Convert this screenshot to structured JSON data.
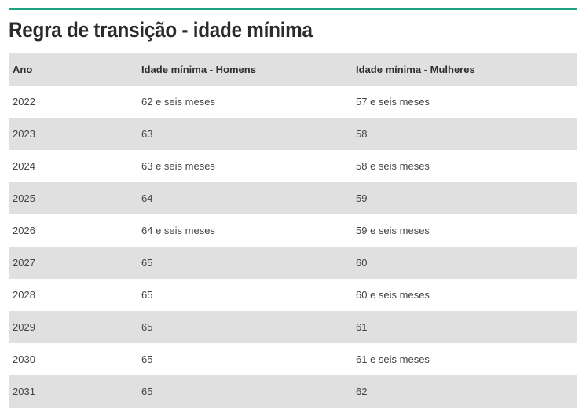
{
  "title": "Regra de transição - idade mínima",
  "accent_color": "#1fa384",
  "table": {
    "headers": [
      "Ano",
      "Idade mínima - Homens",
      "Idade mínima - Mulheres"
    ],
    "rows": [
      [
        "2022",
        "62 e seis meses",
        "57 e seis meses"
      ],
      [
        "2023",
        "63",
        "58"
      ],
      [
        "2024",
        "63 e seis meses",
        "58 e seis meses"
      ],
      [
        "2025",
        "64",
        "59"
      ],
      [
        "2026",
        "64 e seis meses",
        "59 e seis meses"
      ],
      [
        "2027",
        "65",
        "60"
      ],
      [
        "2028",
        "65",
        "60 e seis meses"
      ],
      [
        "2029",
        "65",
        "61"
      ],
      [
        "2030",
        "65",
        "61 e seis meses"
      ],
      [
        "2031",
        "65",
        "62"
      ]
    ]
  }
}
